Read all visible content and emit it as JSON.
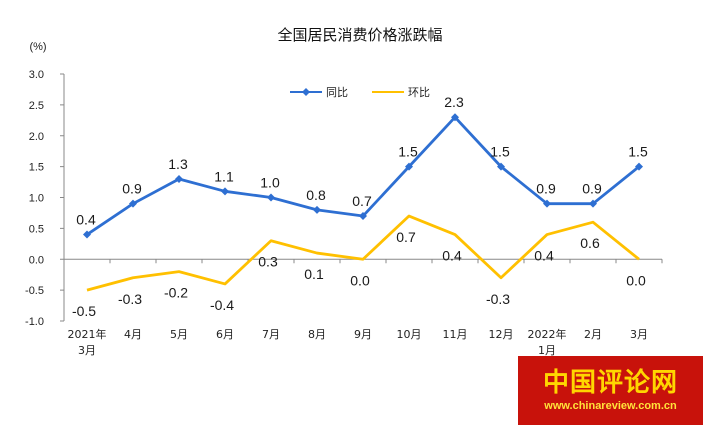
{
  "chart_data": {
    "type": "line",
    "title": "全国居民消费价格涨跌幅",
    "ylabel": "(%)",
    "ylim": [
      -1.0,
      3.0
    ],
    "yticks": [
      "3.0",
      "2.5",
      "2.0",
      "1.5",
      "1.0",
      "0.5",
      "0.0",
      "-0.5",
      "-1.0"
    ],
    "categories": [
      [
        "2021年",
        "3月"
      ],
      [
        "4月"
      ],
      [
        "5月"
      ],
      [
        "6月"
      ],
      [
        "7月"
      ],
      [
        "8月"
      ],
      [
        "9月"
      ],
      [
        "10月"
      ],
      [
        "11月"
      ],
      [
        "12月"
      ],
      [
        "2022年",
        "1月"
      ],
      [
        "2月"
      ],
      [
        "3月"
      ]
    ],
    "series": [
      {
        "name": "同比",
        "color": "#2e6fd2",
        "values": [
          0.4,
          0.9,
          1.3,
          1.1,
          1.0,
          0.8,
          0.7,
          1.5,
          2.3,
          1.5,
          0.9,
          0.9,
          1.5
        ],
        "labels": [
          "0.4",
          "0.9",
          "1.3",
          "1.1",
          "1.0",
          "0.8",
          "0.7",
          "1.5",
          "2.3",
          "1.5",
          "0.9",
          "0.9",
          "1.5"
        ]
      },
      {
        "name": "环比",
        "color": "#ffc000",
        "values": [
          -0.5,
          -0.3,
          -0.2,
          -0.4,
          0.3,
          0.1,
          0.0,
          0.7,
          0.4,
          -0.3,
          0.4,
          0.6,
          0.0
        ],
        "labels": [
          "-0.5",
          "-0.3",
          "-0.2",
          "-0.4",
          "0.3",
          "0.1",
          "0.0",
          "0.7",
          "0.4",
          "-0.3",
          "0.4",
          "0.6",
          "0.0"
        ]
      }
    ],
    "grid": false,
    "legend_position": "top-center"
  },
  "watermark": {
    "name": "中国评论网",
    "url": "www.chinareview.com.cn"
  }
}
